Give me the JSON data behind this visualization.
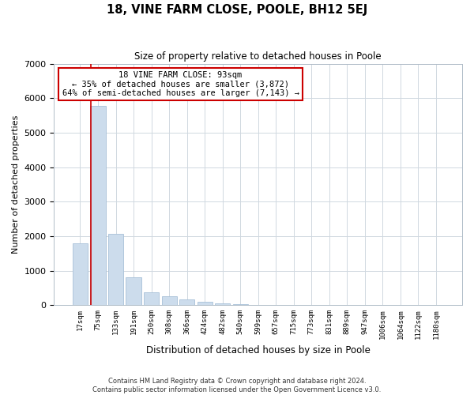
{
  "title": "18, VINE FARM CLOSE, POOLE, BH12 5EJ",
  "subtitle": "Size of property relative to detached houses in Poole",
  "xlabel": "Distribution of detached houses by size in Poole",
  "ylabel": "Number of detached properties",
  "bar_labels": [
    "17sqm",
    "75sqm",
    "133sqm",
    "191sqm",
    "250sqm",
    "308sqm",
    "366sqm",
    "424sqm",
    "482sqm",
    "540sqm",
    "599sqm",
    "657sqm",
    "715sqm",
    "773sqm",
    "831sqm",
    "889sqm",
    "947sqm",
    "1006sqm",
    "1064sqm",
    "1122sqm",
    "1180sqm"
  ],
  "bar_values": [
    1780,
    5780,
    2060,
    810,
    370,
    245,
    155,
    90,
    55,
    30,
    15,
    10,
    5,
    0,
    0,
    0,
    0,
    0,
    0,
    0,
    0
  ],
  "bar_color": "#ccdcec",
  "bar_edge_color": "#a8c0d8",
  "vline_x_index": 1,
  "vline_color": "#cc0000",
  "ylim": [
    0,
    7000
  ],
  "yticks": [
    0,
    1000,
    2000,
    3000,
    4000,
    5000,
    6000,
    7000
  ],
  "annotation_title": "18 VINE FARM CLOSE: 93sqm",
  "annotation_line1": "← 35% of detached houses are smaller (3,872)",
  "annotation_line2": "64% of semi-detached houses are larger (7,143) →",
  "annotation_box_color": "#ffffff",
  "annotation_box_edge": "#cc0000",
  "footer1": "Contains HM Land Registry data © Crown copyright and database right 2024.",
  "footer2": "Contains public sector information licensed under the Open Government Licence v3.0.",
  "grid_color": "#d0d8e0",
  "background_color": "#ffffff"
}
